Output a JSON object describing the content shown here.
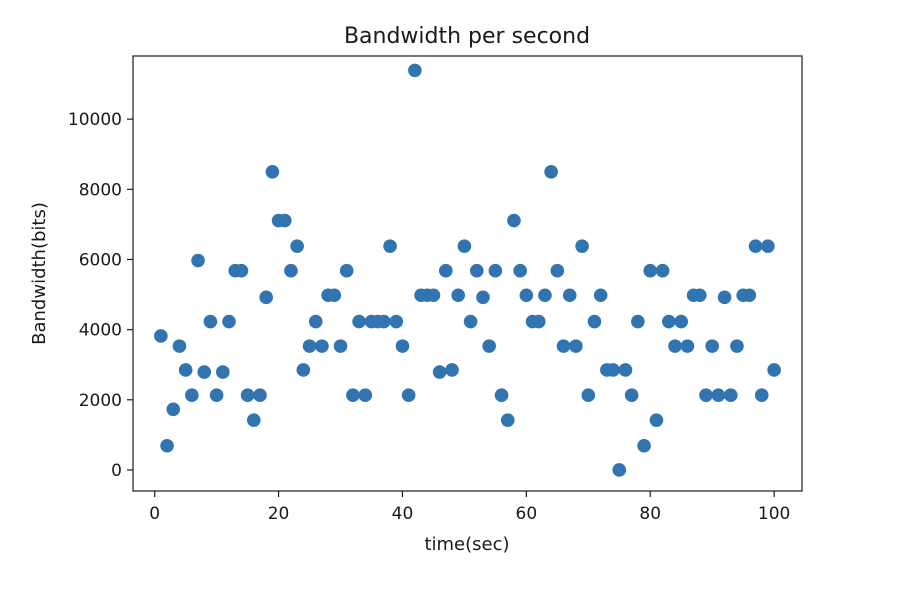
{
  "chart_data": {
    "type": "scatter",
    "title": "Bandwidth per second",
    "xlabel": "time(sec)",
    "ylabel": "Bandwidth(bits)",
    "xlim": [
      -3.5,
      104.5
    ],
    "ylim": [
      -600,
      11800
    ],
    "xticks": [
      0,
      20,
      40,
      60,
      80,
      100
    ],
    "yticks": [
      0,
      2000,
      4000,
      6000,
      8000,
      10000
    ],
    "xtick_labels": [
      "0",
      "20",
      "40",
      "60",
      "80",
      "100"
    ],
    "ytick_labels": [
      "0",
      "2000",
      "4000",
      "6000",
      "8000",
      "10000"
    ],
    "grid": false,
    "colors": {
      "marker": "#3274b0",
      "axes": "#1a1a1a",
      "background": "#ffffff"
    },
    "series": [
      {
        "x": [
          1,
          2,
          3,
          4,
          5,
          6,
          7,
          8,
          9,
          10,
          11,
          12,
          13,
          14,
          15,
          16,
          17,
          18,
          19,
          20,
          21,
          22,
          23,
          24,
          25,
          26,
          27,
          28,
          29,
          30,
          31,
          32,
          33,
          34,
          35,
          36,
          37,
          38,
          39,
          40,
          41,
          42,
          43,
          44,
          45,
          46,
          47,
          48,
          49,
          50,
          51,
          52,
          53,
          54,
          55,
          56,
          57,
          58,
          59,
          60,
          61,
          62,
          63,
          64,
          65,
          66,
          67,
          68,
          69,
          70,
          71,
          72,
          73,
          74,
          75,
          76,
          77,
          78,
          79,
          80,
          81,
          82,
          83,
          84,
          85,
          86,
          87,
          88,
          89,
          90,
          91,
          92,
          93,
          94,
          95,
          96,
          97,
          98,
          99,
          100
        ],
        "y": [
          3820,
          690,
          1730,
          3530,
          2850,
          2130,
          5970,
          2790,
          4230,
          2130,
          2790,
          4230,
          5680,
          5680,
          2130,
          1420,
          2130,
          4920,
          8500,
          7110,
          7110,
          5680,
          6380,
          2850,
          3530,
          4230,
          3530,
          4980,
          4980,
          3530,
          5680,
          2130,
          4230,
          2130,
          4230,
          4230,
          4230,
          6380,
          4230,
          3530,
          2130,
          11390,
          4980,
          4980,
          4980,
          2790,
          5680,
          2850,
          4980,
          6380,
          4230,
          5680,
          4920,
          3530,
          5680,
          2130,
          1420,
          7110,
          5680,
          4980,
          4230,
          4230,
          4980,
          8500,
          5680,
          3530,
          4980,
          3530,
          6380,
          2130,
          4230,
          4980,
          2850,
          2850,
          0,
          2850,
          2130,
          4230,
          690,
          5680,
          1420,
          5680,
          4230,
          3530,
          4230,
          3530,
          4980,
          4980,
          2130,
          3530,
          2130,
          4920,
          2130,
          3530,
          4980,
          4980,
          6380,
          2130,
          6380,
          2850
        ]
      }
    ]
  }
}
